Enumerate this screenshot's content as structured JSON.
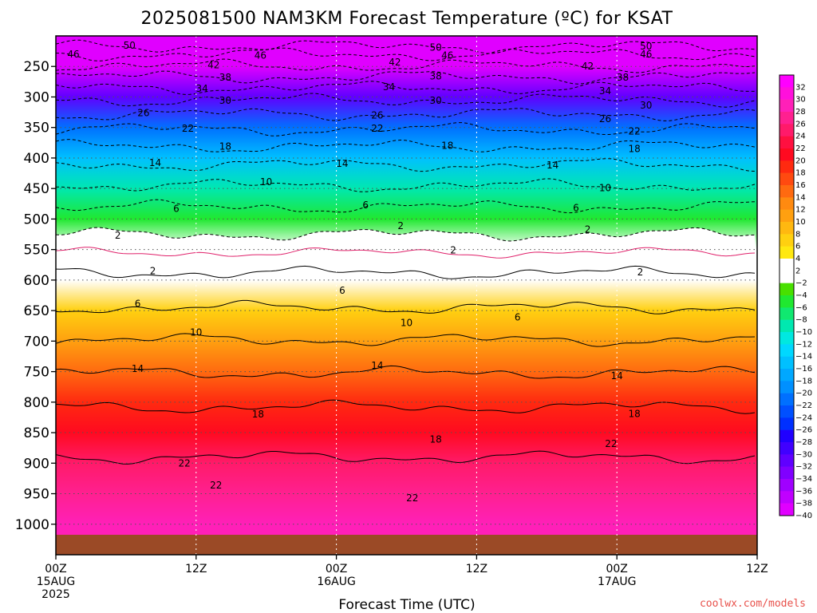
{
  "chart_data": {
    "type": "heatmap",
    "title": "2025081500 NAM3KM Forecast Temperature (ºC) for KSAT",
    "xlabel": "Forecast Time (UTC)",
    "ylabel": "",
    "credit": "coolwx.com/models",
    "y_axis": {
      "units": "hPa",
      "inverted": true,
      "range": [
        200,
        1050
      ],
      "ticks": [
        250,
        300,
        350,
        400,
        450,
        500,
        550,
        600,
        650,
        700,
        750,
        800,
        850,
        900,
        950,
        1000
      ],
      "tick_labels": [
        "250",
        "300",
        "350",
        "400",
        "450",
        "500",
        "550",
        "600",
        "650",
        "700",
        "750",
        "800",
        "850",
        "900",
        "950",
        "1000"
      ]
    },
    "x_axis": {
      "units": "forecast hours",
      "range": [
        0,
        60
      ],
      "ticks": [
        {
          "hour": 0,
          "lines": [
            "00Z",
            "15AUG",
            "2025"
          ]
        },
        {
          "hour": 12,
          "lines": [
            "12Z"
          ]
        },
        {
          "hour": 24,
          "lines": [
            "00Z",
            "16AUG"
          ]
        },
        {
          "hour": 36,
          "lines": [
            "12Z"
          ]
        },
        {
          "hour": 48,
          "lines": [
            "00Z",
            "17AUG"
          ]
        },
        {
          "hour": 60,
          "lines": [
            "12Z"
          ]
        }
      ]
    },
    "grid": true,
    "color_levels": [
      32,
      30,
      28,
      26,
      24,
      22,
      20,
      18,
      16,
      14,
      12,
      10,
      8,
      6,
      4,
      2,
      -2,
      -4,
      -6,
      -8,
      -10,
      -12,
      -14,
      -16,
      -18,
      -20,
      -22,
      -24,
      -26,
      -28,
      -30,
      -32,
      -34,
      -36,
      -38,
      -40
    ],
    "colorbar_labels": [
      "32",
      "30",
      "28",
      "26",
      "24",
      "22",
      "20",
      "18",
      "16",
      "14",
      "12",
      "10",
      "8",
      "6",
      "4",
      "2",
      "−2",
      "−4",
      "−6",
      "−8",
      "−10",
      "−12",
      "−14",
      "−16",
      "−18",
      "−20",
      "−22",
      "−24",
      "−26",
      "−28",
      "−30",
      "−32",
      "−34",
      "−36",
      "−38",
      "−40"
    ],
    "colorbar_colors": [
      "#ff00ff",
      "#ff10dc",
      "#ff20b8",
      "#ff2090",
      "#ff1a6a",
      "#ff1040",
      "#ff0a20",
      "#ff2a10",
      "#ff4a10",
      "#ff6a10",
      "#ff8a10",
      "#ffa010",
      "#ffb810",
      "#ffd010",
      "#ffe810",
      "#ffffff",
      "#ffffff",
      "#48e000",
      "#20e830",
      "#10e870",
      "#00e8b0",
      "#00e8e0",
      "#00d8ff",
      "#00c0ff",
      "#00a8ff",
      "#0090ff",
      "#0070ff",
      "#0050ff",
      "#0030ff",
      "#2000ff",
      "#4000ff",
      "#6000ff",
      "#8000ff",
      "#a000ff",
      "#c000ff",
      "#e000ff"
    ],
    "temperature_profile": [
      {
        "p": 200,
        "t": -54
      },
      {
        "p": 250,
        "t": -42
      },
      {
        "p": 300,
        "t": -31
      },
      {
        "p": 350,
        "t": -22
      },
      {
        "p": 400,
        "t": -15
      },
      {
        "p": 450,
        "t": -10
      },
      {
        "p": 500,
        "t": -6
      },
      {
        "p": 550,
        "t": -2
      },
      {
        "p": 600,
        "t": 2
      },
      {
        "p": 650,
        "t": 6
      },
      {
        "p": 700,
        "t": 10
      },
      {
        "p": 750,
        "t": 14
      },
      {
        "p": 800,
        "t": 18
      },
      {
        "p": 850,
        "t": 21
      },
      {
        "p": 900,
        "t": 24
      },
      {
        "p": 950,
        "t": 26
      },
      {
        "p": 1000,
        "t": 28
      }
    ],
    "contours": [
      {
        "level": -50,
        "sign": "negative",
        "pressure": 217
      },
      {
        "level": -46,
        "sign": "negative",
        "pressure": 230
      },
      {
        "level": -42,
        "sign": "negative",
        "pressure": 249
      },
      {
        "level": -38,
        "sign": "negative",
        "pressure": 267
      },
      {
        "level": -34,
        "sign": "negative",
        "pressure": 285
      },
      {
        "level": -30,
        "sign": "negative",
        "pressure": 305
      },
      {
        "level": -26,
        "sign": "negative",
        "pressure": 328
      },
      {
        "level": -22,
        "sign": "negative",
        "pressure": 353
      },
      {
        "level": -18,
        "sign": "negative",
        "pressure": 381
      },
      {
        "level": -14,
        "sign": "negative",
        "pressure": 411
      },
      {
        "level": -10,
        "sign": "negative",
        "pressure": 445
      },
      {
        "level": -6,
        "sign": "negative",
        "pressure": 480
      },
      {
        "level": -2,
        "sign": "negative",
        "pressure": 525
      },
      {
        "level": 2,
        "sign": "positive",
        "pressure": 588
      },
      {
        "level": 6,
        "sign": "positive",
        "pressure": 645
      },
      {
        "level": 10,
        "sign": "positive",
        "pressure": 698
      },
      {
        "level": 14,
        "sign": "positive",
        "pressure": 752
      },
      {
        "level": 18,
        "sign": "positive",
        "pressure": 808
      },
      {
        "level": 22,
        "sign": "positive",
        "pressure": 890
      }
    ],
    "contour_labels": [
      {
        "text": "50",
        "hour": 6.3,
        "p": 216
      },
      {
        "text": "50",
        "hour": 32.5,
        "p": 219
      },
      {
        "text": "50",
        "hour": 50.5,
        "p": 217
      },
      {
        "text": "46",
        "hour": 1.5,
        "p": 230
      },
      {
        "text": "46",
        "hour": 17.5,
        "p": 232
      },
      {
        "text": "46",
        "hour": 33.5,
        "p": 232
      },
      {
        "text": "46",
        "hour": 50.5,
        "p": 230
      },
      {
        "text": "42",
        "hour": 13.5,
        "p": 248
      },
      {
        "text": "42",
        "hour": 29,
        "p": 243
      },
      {
        "text": "42",
        "hour": 45.5,
        "p": 250
      },
      {
        "text": "38",
        "hour": 14.5,
        "p": 268
      },
      {
        "text": "38",
        "hour": 32.5,
        "p": 266
      },
      {
        "text": "38",
        "hour": 48.5,
        "p": 268
      },
      {
        "text": "34",
        "hour": 12.5,
        "p": 286
      },
      {
        "text": "34",
        "hour": 28.5,
        "p": 284
      },
      {
        "text": "34",
        "hour": 47,
        "p": 290
      },
      {
        "text": "30",
        "hour": 14.5,
        "p": 306
      },
      {
        "text": "30",
        "hour": 32.5,
        "p": 306
      },
      {
        "text": "30",
        "hour": 50.5,
        "p": 314
      },
      {
        "text": "26",
        "hour": 7.5,
        "p": 326
      },
      {
        "text": "26",
        "hour": 27.5,
        "p": 330
      },
      {
        "text": "26",
        "hour": 47,
        "p": 336
      },
      {
        "text": "22",
        "hour": 11.3,
        "p": 352
      },
      {
        "text": "22",
        "hour": 27.5,
        "p": 352
      },
      {
        "text": "22",
        "hour": 49.5,
        "p": 356
      },
      {
        "text": "18",
        "hour": 14.5,
        "p": 381
      },
      {
        "text": "18",
        "hour": 33.5,
        "p": 380
      },
      {
        "text": "18",
        "hour": 49.5,
        "p": 385
      },
      {
        "text": "14",
        "hour": 8.5,
        "p": 408
      },
      {
        "text": "14",
        "hour": 24.5,
        "p": 409
      },
      {
        "text": "14",
        "hour": 42.5,
        "p": 412
      },
      {
        "text": "10",
        "hour": 18,
        "p": 439
      },
      {
        "text": "10",
        "hour": 47,
        "p": 449
      },
      {
        "text": "6",
        "hour": 10.3,
        "p": 483
      },
      {
        "text": "6",
        "hour": 26.5,
        "p": 477
      },
      {
        "text": "6",
        "hour": 44.5,
        "p": 482
      },
      {
        "text": "2",
        "hour": 5.3,
        "p": 527
      },
      {
        "text": "2",
        "hour": 29.5,
        "p": 511
      },
      {
        "text": "2",
        "hour": 45.5,
        "p": 517
      },
      {
        "text": "2",
        "hour": 34,
        "p": 551
      },
      {
        "text": "2",
        "hour": 8.3,
        "p": 585
      },
      {
        "text": "2",
        "hour": 50,
        "p": 587
      },
      {
        "text": "6",
        "hour": 7,
        "p": 639
      },
      {
        "text": "6",
        "hour": 24.5,
        "p": 617
      },
      {
        "text": "6",
        "hour": 39.5,
        "p": 661
      },
      {
        "text": "10",
        "hour": 12,
        "p": 686
      },
      {
        "text": "10",
        "hour": 30,
        "p": 670
      },
      {
        "text": "14",
        "hour": 7,
        "p": 745
      },
      {
        "text": "14",
        "hour": 27.5,
        "p": 740
      },
      {
        "text": "14",
        "hour": 48,
        "p": 757
      },
      {
        "text": "18",
        "hour": 17.3,
        "p": 820
      },
      {
        "text": "18",
        "hour": 32.5,
        "p": 861
      },
      {
        "text": "18",
        "hour": 49.5,
        "p": 819
      },
      {
        "text": "22",
        "hour": 11,
        "p": 900
      },
      {
        "text": "22",
        "hour": 13.7,
        "p": 936
      },
      {
        "text": "22",
        "hour": 30.5,
        "p": 957
      },
      {
        "text": "22",
        "hour": 47.5,
        "p": 868
      }
    ]
  }
}
